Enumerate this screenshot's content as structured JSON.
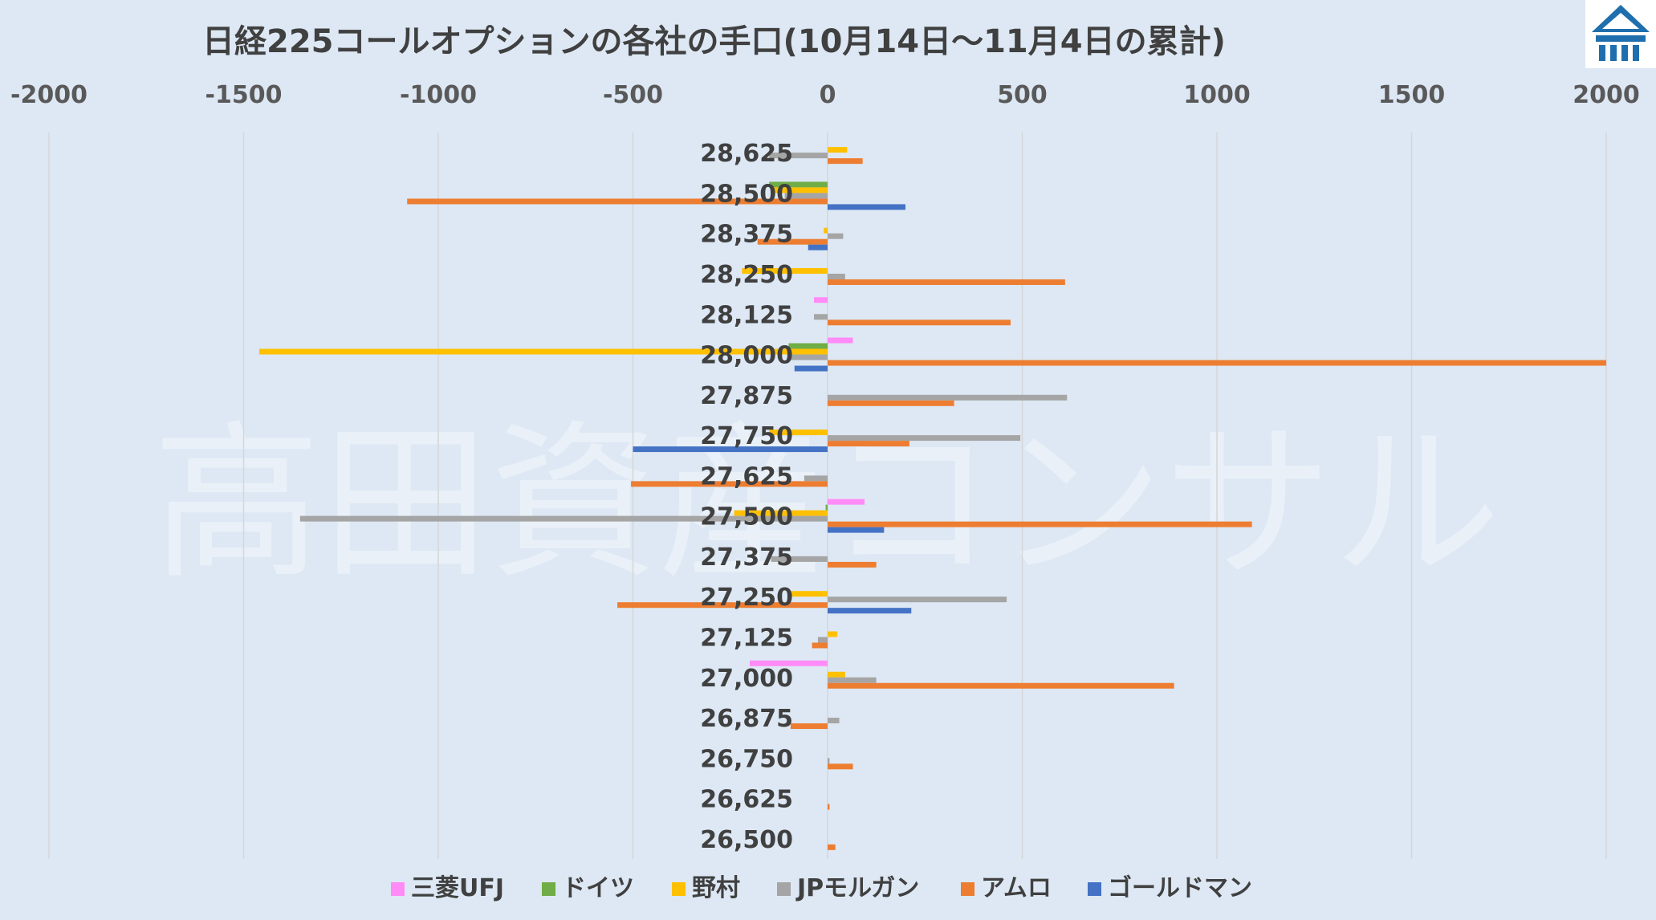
{
  "chart_data": {
    "type": "bar",
    "orientation": "horizontal",
    "title": "日経225コールオプションの各社の手口(10月14日～11月4日の累計)",
    "xlim": [
      -2000,
      2000
    ],
    "xticks": [
      "-2000",
      "-1500",
      "-1000",
      "-500",
      "0",
      "500",
      "1000",
      "1500",
      "2000"
    ],
    "categories": [
      "28,625",
      "28,500",
      "28,375",
      "28,250",
      "28,125",
      "28,000",
      "27,875",
      "27,750",
      "27,625",
      "27,500",
      "27,375",
      "27,250",
      "27,125",
      "27,000",
      "26,875",
      "26,750",
      "26,625",
      "26,500"
    ],
    "grid": true,
    "legend_position": "bottom",
    "series": [
      {
        "name": "三菱UFJ",
        "color": "#ff8bf7",
        "values": [
          0,
          0,
          0,
          0,
          -35,
          65,
          0,
          0,
          0,
          95,
          0,
          0,
          0,
          -200,
          0,
          0,
          0,
          0
        ]
      },
      {
        "name": "ドイツ",
        "color": "#70ad47",
        "values": [
          0,
          -150,
          0,
          0,
          0,
          -100,
          0,
          0,
          0,
          -5,
          0,
          0,
          0,
          0,
          0,
          0,
          0,
          0
        ]
      },
      {
        "name": "野村",
        "color": "#ffc000",
        "values": [
          50,
          -140,
          -10,
          -220,
          0,
          -1460,
          0,
          -150,
          0,
          -240,
          0,
          -100,
          25,
          45,
          0,
          0,
          0,
          0
        ]
      },
      {
        "name": "JPモルガン",
        "color": "#a5a5a5",
        "values": [
          -150,
          -110,
          40,
          45,
          -35,
          -100,
          615,
          495,
          -60,
          -1355,
          -145,
          460,
          -25,
          125,
          30,
          5,
          0,
          0
        ]
      },
      {
        "name": "アムロ",
        "color": "#ed7d31",
        "values": [
          90,
          -1080,
          -180,
          610,
          470,
          2000,
          325,
          210,
          -505,
          1090,
          125,
          -540,
          -40,
          890,
          -95,
          65,
          5,
          20
        ]
      },
      {
        "name": "ゴールドマン",
        "color": "#4472c4",
        "values": [
          0,
          200,
          -50,
          0,
          0,
          -85,
          0,
          -500,
          0,
          145,
          0,
          215,
          0,
          0,
          0,
          0,
          0,
          0
        ]
      }
    ]
  },
  "watermark": "高田資産コンサル",
  "logo": {
    "label": "logo",
    "color": "#1f6fae"
  }
}
